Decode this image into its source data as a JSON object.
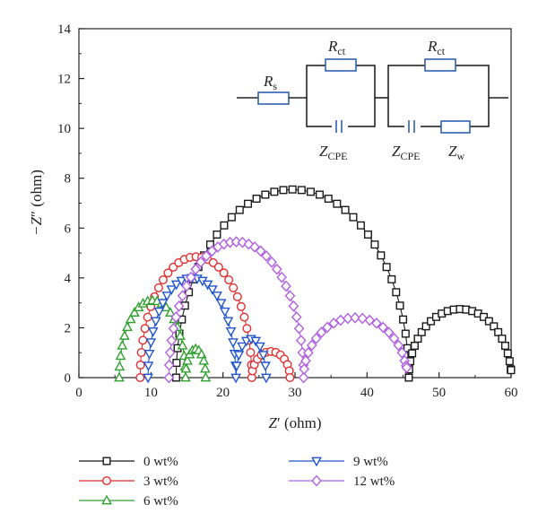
{
  "chart_data": {
    "type": "scatter",
    "xlabel_main": "Z",
    "xlabel_prime": "′",
    "xlabel_unit": " (ohm)",
    "ylabel_main": "−Z",
    "ylabel_prime": "″",
    "ylabel_unit": " (ohm)",
    "xlim": [
      0,
      60
    ],
    "ylim": [
      0,
      14
    ],
    "x_ticks": [
      "0",
      "10",
      "20",
      "30",
      "40",
      "50",
      "60"
    ],
    "y_ticks": [
      "0",
      "2",
      "4",
      "6",
      "8",
      "10",
      "12",
      "14"
    ],
    "grid": false,
    "legend_position": "bottom",
    "series": [
      {
        "name": "0 wt%",
        "marker": "square",
        "color": "#1a1a1a",
        "arcs": [
          {
            "x0": 13.5,
            "x1": 45.8,
            "h": 7.55,
            "n": 40
          },
          {
            "x0": 45.8,
            "x1": 60,
            "h": 2.75,
            "n": 26,
            "clipEnd": 0.3
          }
        ]
      },
      {
        "name": "3 wt%",
        "marker": "circle",
        "color": "#e03030",
        "arcs": [
          {
            "x0": 8.5,
            "x1": 24.0,
            "h": 4.85,
            "n": 30
          },
          {
            "x0": 24.0,
            "x1": 29.3,
            "h": 1.05,
            "n": 12
          }
        ]
      },
      {
        "name": "6 wt%",
        "marker": "triangle-up",
        "color": "#30a030",
        "arcs": [
          {
            "x0": 5.6,
            "x1": 14.8,
            "h": 3.1,
            "n": 22
          },
          {
            "x0": 14.8,
            "x1": 17.6,
            "h": 1.15,
            "n": 10
          }
        ]
      },
      {
        "name": "9 wt%",
        "marker": "triangle-down",
        "color": "#2255cc",
        "arcs": [
          {
            "x0": 9.6,
            "x1": 21.8,
            "h": 4.0,
            "n": 26
          },
          {
            "x0": 21.8,
            "x1": 26.0,
            "h": 1.55,
            "n": 10
          }
        ]
      },
      {
        "name": "12 wt%",
        "marker": "diamond",
        "color": "#b060e0",
        "arcs": [
          {
            "x0": 12.5,
            "x1": 31.2,
            "h": 5.45,
            "n": 34
          },
          {
            "x0": 31.2,
            "x1": 45.5,
            "h": 2.4,
            "n": 22,
            "tailTo": 0.4
          }
        ]
      }
    ]
  },
  "circuit": {
    "rs": "R",
    "rs_sub": "s",
    "rct1": "R",
    "rct1_sub": "ct",
    "zcpe1": "Z",
    "zcpe1_sub": "CPE",
    "rct2": "R",
    "rct2_sub": "ct",
    "zcpe2": "Z",
    "zcpe2_sub": "CPE",
    "zw": "Z",
    "zw_sub": "w"
  }
}
